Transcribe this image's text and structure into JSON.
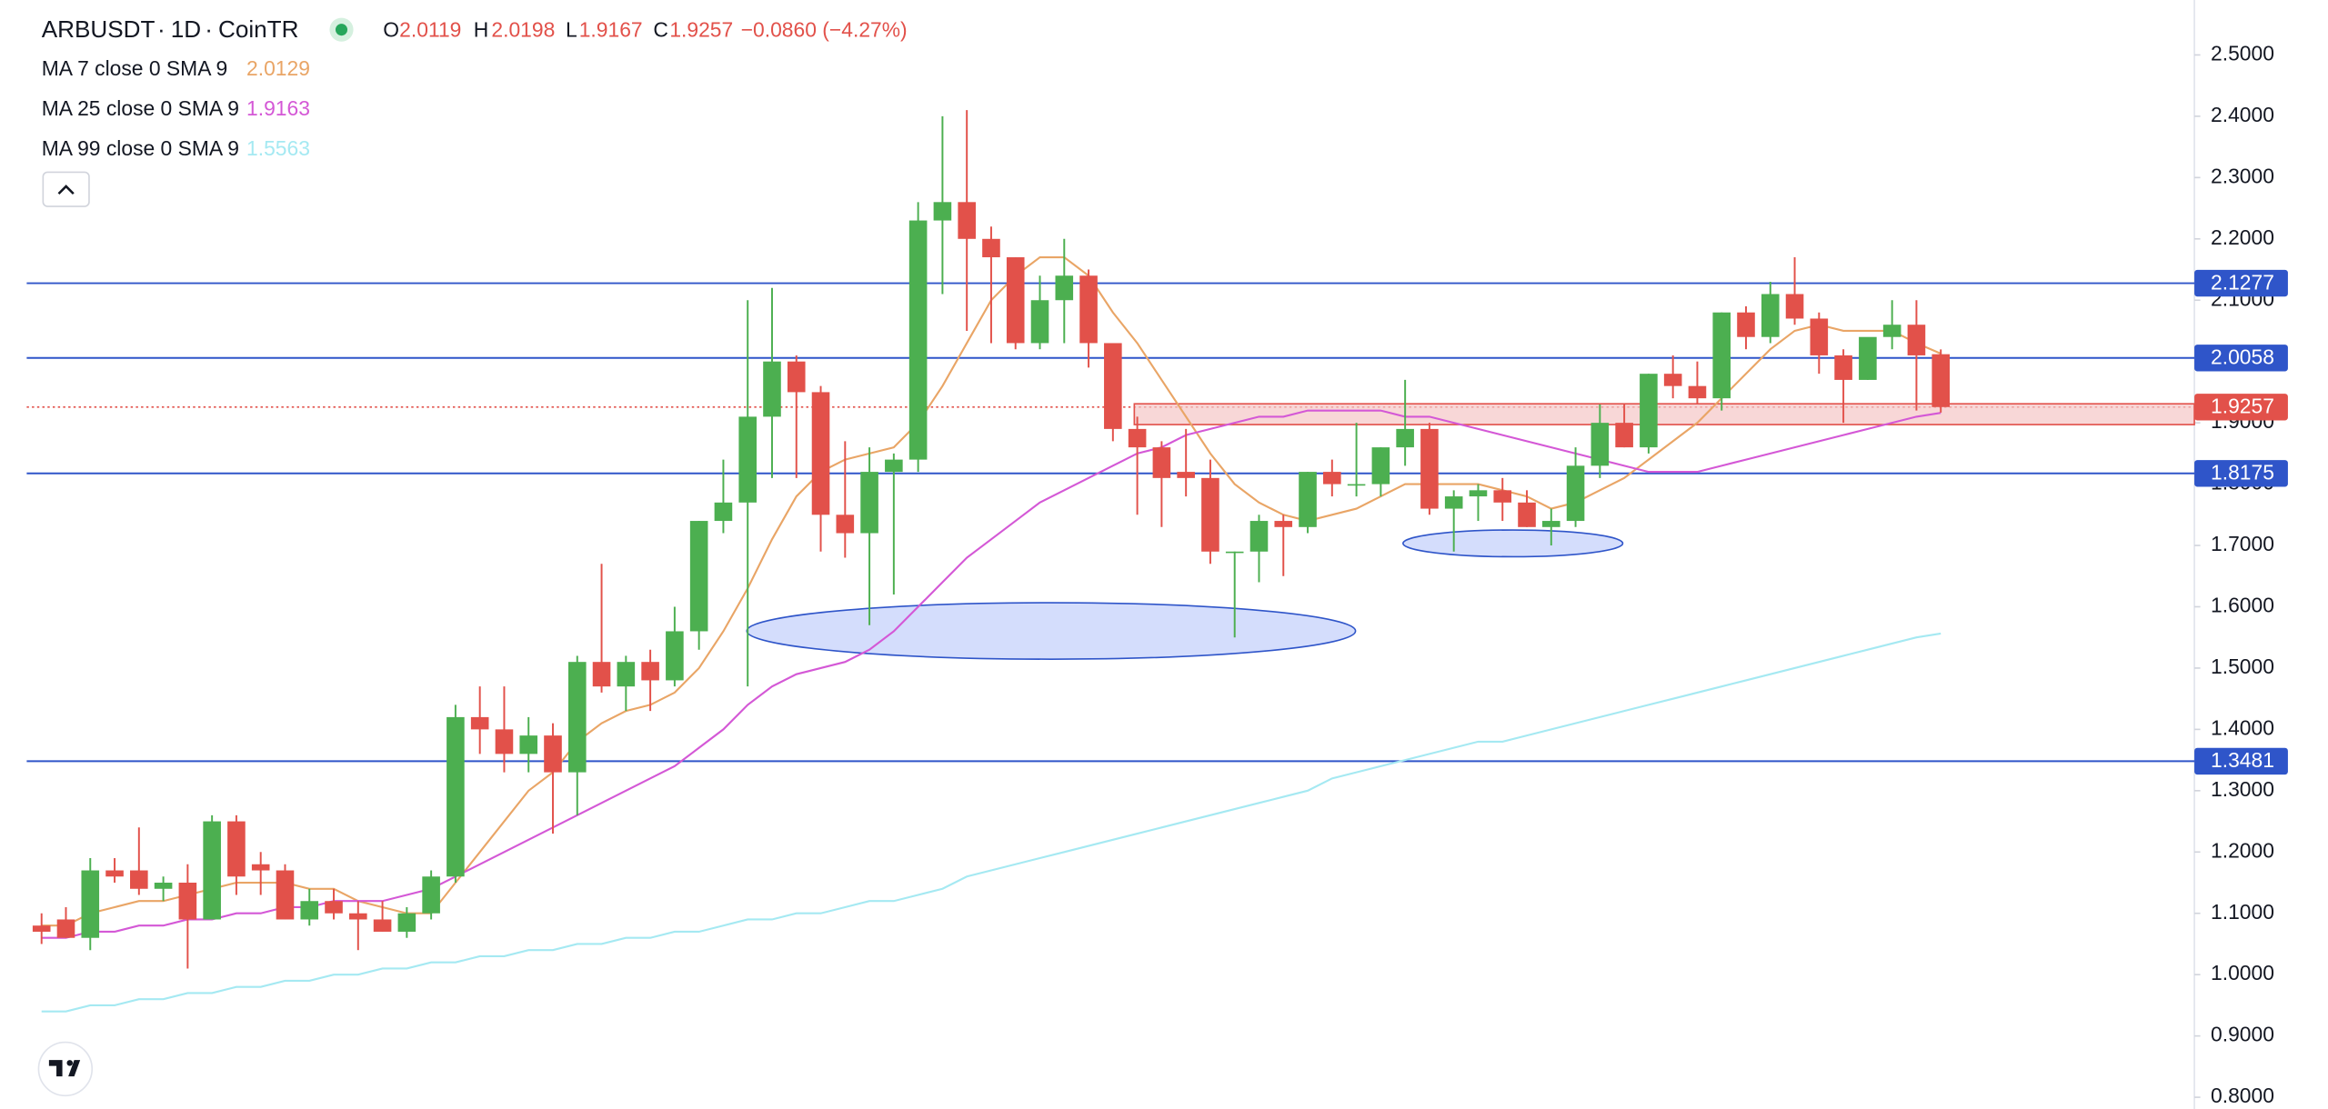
{
  "chart_data": {
    "type": "candlestick",
    "symbol": "ARBUSDT",
    "interval": "1D",
    "exchange": "CoinTR",
    "separator": "·",
    "legend_letters": {
      "open": "O",
      "high": "H",
      "low": "L",
      "close": "C"
    },
    "change": "−0.0860 (−4.27%)",
    "up_color": "#4caf50",
    "down_color": "#e2514a",
    "open": [
      1.08,
      1.09,
      1.06,
      1.17,
      1.17,
      1.14,
      1.15,
      1.09,
      1.25,
      1.18,
      1.17,
      1.09,
      1.12,
      1.1,
      1.09,
      1.07,
      1.1,
      1.16,
      1.42,
      1.4,
      1.36,
      1.39,
      1.33,
      1.51,
      1.47,
      1.51,
      1.48,
      1.56,
      1.74,
      1.77,
      1.91,
      2.0,
      1.95,
      1.75,
      1.72,
      1.82,
      1.84,
      2.23,
      2.26,
      2.2,
      2.17,
      2.03,
      2.1,
      2.14,
      2.03,
      1.89,
      1.86,
      1.82,
      1.81,
      1.69,
      1.69,
      1.74,
      1.73,
      1.82,
      1.8,
      1.8,
      1.86,
      1.89,
      1.76,
      1.78,
      1.79,
      1.77,
      1.73,
      1.74,
      1.83,
      1.9,
      1.86,
      1.98,
      1.96,
      1.94,
      2.08,
      2.04,
      2.11,
      2.07,
      2.01,
      1.97,
      2.04,
      2.06,
      2.0119
    ],
    "high": [
      1.1,
      1.11,
      1.19,
      1.19,
      1.24,
      1.16,
      1.18,
      1.26,
      1.26,
      1.2,
      1.18,
      1.14,
      1.14,
      1.12,
      1.12,
      1.11,
      1.17,
      1.44,
      1.47,
      1.47,
      1.42,
      1.41,
      1.52,
      1.67,
      1.52,
      1.53,
      1.6,
      1.74,
      1.84,
      2.1,
      2.12,
      2.01,
      1.96,
      1.87,
      1.86,
      1.85,
      2.26,
      2.4,
      2.41,
      2.22,
      2.17,
      2.14,
      2.2,
      2.15,
      2.03,
      1.91,
      1.87,
      1.89,
      1.84,
      1.69,
      1.75,
      1.75,
      1.82,
      1.84,
      1.9,
      1.86,
      1.97,
      1.9,
      1.79,
      1.8,
      1.81,
      1.79,
      1.76,
      1.86,
      1.93,
      1.93,
      1.98,
      2.01,
      2.0,
      2.08,
      2.09,
      2.13,
      2.17,
      2.08,
      2.02,
      2.03,
      2.1,
      2.1,
      2.0198
    ],
    "low": [
      1.05,
      1.06,
      1.04,
      1.15,
      1.13,
      1.12,
      1.01,
      1.09,
      1.13,
      1.13,
      1.09,
      1.08,
      1.09,
      1.04,
      1.07,
      1.06,
      1.09,
      1.15,
      1.36,
      1.33,
      1.33,
      1.23,
      1.26,
      1.46,
      1.43,
      1.43,
      1.47,
      1.53,
      1.72,
      1.47,
      1.81,
      1.81,
      1.69,
      1.68,
      1.57,
      1.62,
      1.82,
      2.11,
      2.05,
      2.03,
      2.02,
      2.02,
      2.03,
      1.99,
      1.87,
      1.75,
      1.73,
      1.78,
      1.67,
      1.55,
      1.64,
      1.65,
      1.72,
      1.78,
      1.78,
      1.78,
      1.83,
      1.75,
      1.69,
      1.74,
      1.74,
      1.73,
      1.7,
      1.73,
      1.81,
      1.86,
      1.85,
      1.94,
      1.93,
      1.92,
      2.02,
      2.03,
      2.06,
      1.98,
      1.9,
      1.97,
      2.02,
      1.92,
      1.9167
    ],
    "close": [
      1.07,
      1.06,
      1.17,
      1.16,
      1.14,
      1.15,
      1.09,
      1.25,
      1.16,
      1.17,
      1.09,
      1.12,
      1.1,
      1.09,
      1.07,
      1.1,
      1.16,
      1.42,
      1.4,
      1.36,
      1.39,
      1.33,
      1.51,
      1.47,
      1.51,
      1.48,
      1.56,
      1.74,
      1.77,
      1.91,
      2.0,
      1.95,
      1.75,
      1.72,
      1.82,
      1.84,
      2.23,
      2.26,
      2.2,
      2.17,
      2.03,
      2.1,
      2.14,
      2.03,
      1.89,
      1.86,
      1.81,
      1.81,
      1.69,
      1.69,
      1.74,
      1.73,
      1.82,
      1.8,
      1.8,
      1.86,
      1.89,
      1.76,
      1.78,
      1.79,
      1.77,
      1.73,
      1.74,
      1.83,
      1.9,
      1.86,
      1.98,
      1.96,
      1.94,
      2.08,
      2.04,
      2.11,
      2.07,
      2.01,
      1.97,
      2.04,
      2.06,
      2.01,
      1.9257
    ],
    "moving_averages": [
      {
        "name": "MA 7 close 0 SMA 9",
        "color": "#e9a566",
        "values": [
          1.08,
          1.08,
          1.1,
          1.11,
          1.12,
          1.12,
          1.13,
          1.14,
          1.15,
          1.15,
          1.15,
          1.14,
          1.14,
          1.12,
          1.11,
          1.1,
          1.1,
          1.15,
          1.2,
          1.25,
          1.3,
          1.33,
          1.38,
          1.41,
          1.43,
          1.44,
          1.46,
          1.5,
          1.56,
          1.63,
          1.71,
          1.78,
          1.82,
          1.84,
          1.85,
          1.86,
          1.9,
          1.96,
          2.03,
          2.1,
          2.14,
          2.17,
          2.17,
          2.14,
          2.08,
          2.03,
          1.97,
          1.91,
          1.85,
          1.8,
          1.77,
          1.75,
          1.74,
          1.75,
          1.76,
          1.78,
          1.8,
          1.8,
          1.8,
          1.8,
          1.79,
          1.78,
          1.76,
          1.77,
          1.79,
          1.81,
          1.84,
          1.87,
          1.9,
          1.94,
          1.98,
          2.02,
          2.05,
          2.06,
          2.05,
          2.05,
          2.05,
          2.03,
          2.0129
        ]
      },
      {
        "name": "MA 25 close 0 SMA 9",
        "color": "#d458d6",
        "values": [
          1.06,
          1.06,
          1.07,
          1.07,
          1.08,
          1.08,
          1.09,
          1.09,
          1.1,
          1.1,
          1.11,
          1.11,
          1.12,
          1.12,
          1.12,
          1.13,
          1.14,
          1.16,
          1.18,
          1.2,
          1.22,
          1.24,
          1.26,
          1.28,
          1.3,
          1.32,
          1.34,
          1.37,
          1.4,
          1.44,
          1.47,
          1.49,
          1.5,
          1.51,
          1.53,
          1.56,
          1.6,
          1.64,
          1.68,
          1.71,
          1.74,
          1.77,
          1.79,
          1.81,
          1.83,
          1.85,
          1.86,
          1.88,
          1.89,
          1.9,
          1.91,
          1.91,
          1.92,
          1.92,
          1.92,
          1.92,
          1.91,
          1.91,
          1.9,
          1.89,
          1.88,
          1.87,
          1.86,
          1.85,
          1.84,
          1.83,
          1.82,
          1.82,
          1.82,
          1.83,
          1.84,
          1.85,
          1.86,
          1.87,
          1.88,
          1.89,
          1.9,
          1.91,
          1.9163
        ]
      },
      {
        "name": "MA 99 close 0 SMA 9",
        "color": "#a5e9f2",
        "values": [
          0.94,
          0.94,
          0.95,
          0.95,
          0.96,
          0.96,
          0.97,
          0.97,
          0.98,
          0.98,
          0.99,
          0.99,
          1.0,
          1.0,
          1.01,
          1.01,
          1.02,
          1.02,
          1.03,
          1.03,
          1.04,
          1.04,
          1.05,
          1.05,
          1.06,
          1.06,
          1.07,
          1.07,
          1.08,
          1.09,
          1.09,
          1.1,
          1.1,
          1.11,
          1.12,
          1.12,
          1.13,
          1.14,
          1.16,
          1.17,
          1.18,
          1.19,
          1.2,
          1.21,
          1.22,
          1.23,
          1.24,
          1.25,
          1.26,
          1.27,
          1.28,
          1.29,
          1.3,
          1.32,
          1.33,
          1.34,
          1.35,
          1.36,
          1.37,
          1.38,
          1.38,
          1.39,
          1.4,
          1.41,
          1.42,
          1.43,
          1.44,
          1.45,
          1.46,
          1.47,
          1.48,
          1.49,
          1.5,
          1.51,
          1.52,
          1.53,
          1.54,
          1.55,
          1.5563
        ]
      }
    ],
    "price_lines": [
      2.1277,
      2.0058,
      1.8175,
      1.3481
    ],
    "price_line_color": "#2f55c9",
    "ylim": [
      0.7857,
      2.5896
    ],
    "yticks": [
      {
        "value": 0.8,
        "label": "0.8000"
      },
      {
        "value": 0.9,
        "label": "0.9000"
      },
      {
        "value": 1.0,
        "label": "1.0000"
      },
      {
        "value": 1.1,
        "label": "1.1000"
      },
      {
        "value": 1.2,
        "label": "1.2000"
      },
      {
        "value": 1.3,
        "label": "1.3000"
      },
      {
        "value": 1.4,
        "label": "1.4000"
      },
      {
        "value": 1.5,
        "label": "1.5000"
      },
      {
        "value": 1.6,
        "label": "1.6000"
      },
      {
        "value": 1.7,
        "label": "1.7000"
      },
      {
        "value": 1.8,
        "label": "1.8000"
      },
      {
        "value": 1.9,
        "label": "1.9000"
      },
      {
        "value": 2.0,
        "label": "2.0000"
      },
      {
        "value": 2.1,
        "label": "2.1000"
      },
      {
        "value": 2.2,
        "label": "2.2000"
      },
      {
        "value": 2.3,
        "label": "2.3000"
      },
      {
        "value": 2.4,
        "label": "2.4000"
      },
      {
        "value": 2.5,
        "label": "2.5000"
      }
    ]
  }
}
